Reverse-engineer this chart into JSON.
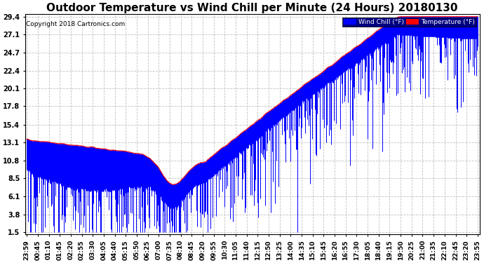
{
  "title": "Outdoor Temperature vs Wind Chill per Minute (24 Hours) 20180130",
  "copyright": "Copyright 2018 Cartronics.com",
  "ylabel_values": [
    1.5,
    3.8,
    6.1,
    8.5,
    10.8,
    13.1,
    15.4,
    17.8,
    20.1,
    22.4,
    24.7,
    27.1,
    29.4
  ],
  "ymin": 1.5,
  "ymax": 29.4,
  "bg_color": "#ffffff",
  "plot_bg_color": "#ffffff",
  "grid_color": "#bbbbbb",
  "wind_chill_color": "#0000ff",
  "temp_color": "#ff0000",
  "legend_wind_chill_label": "Wind Chill (°F)",
  "legend_temp_label": "Temperature (°F)",
  "title_fontsize": 11,
  "axis_fontsize": 7,
  "x_tick_labels": [
    "23:59",
    "00:45",
    "01:10",
    "01:45",
    "02:20",
    "02:55",
    "03:30",
    "04:05",
    "04:40",
    "05:15",
    "05:50",
    "06:25",
    "07:00",
    "07:35",
    "08:10",
    "08:45",
    "09:20",
    "09:55",
    "10:30",
    "11:05",
    "11:40",
    "12:15",
    "12:50",
    "13:25",
    "14:00",
    "14:35",
    "15:10",
    "15:45",
    "16:20",
    "16:55",
    "17:30",
    "18:05",
    "18:40",
    "19:15",
    "19:50",
    "20:25",
    "21:00",
    "21:35",
    "22:10",
    "22:45",
    "23:20",
    "23:55"
  ],
  "n_points": 1440,
  "random_seed": 42
}
